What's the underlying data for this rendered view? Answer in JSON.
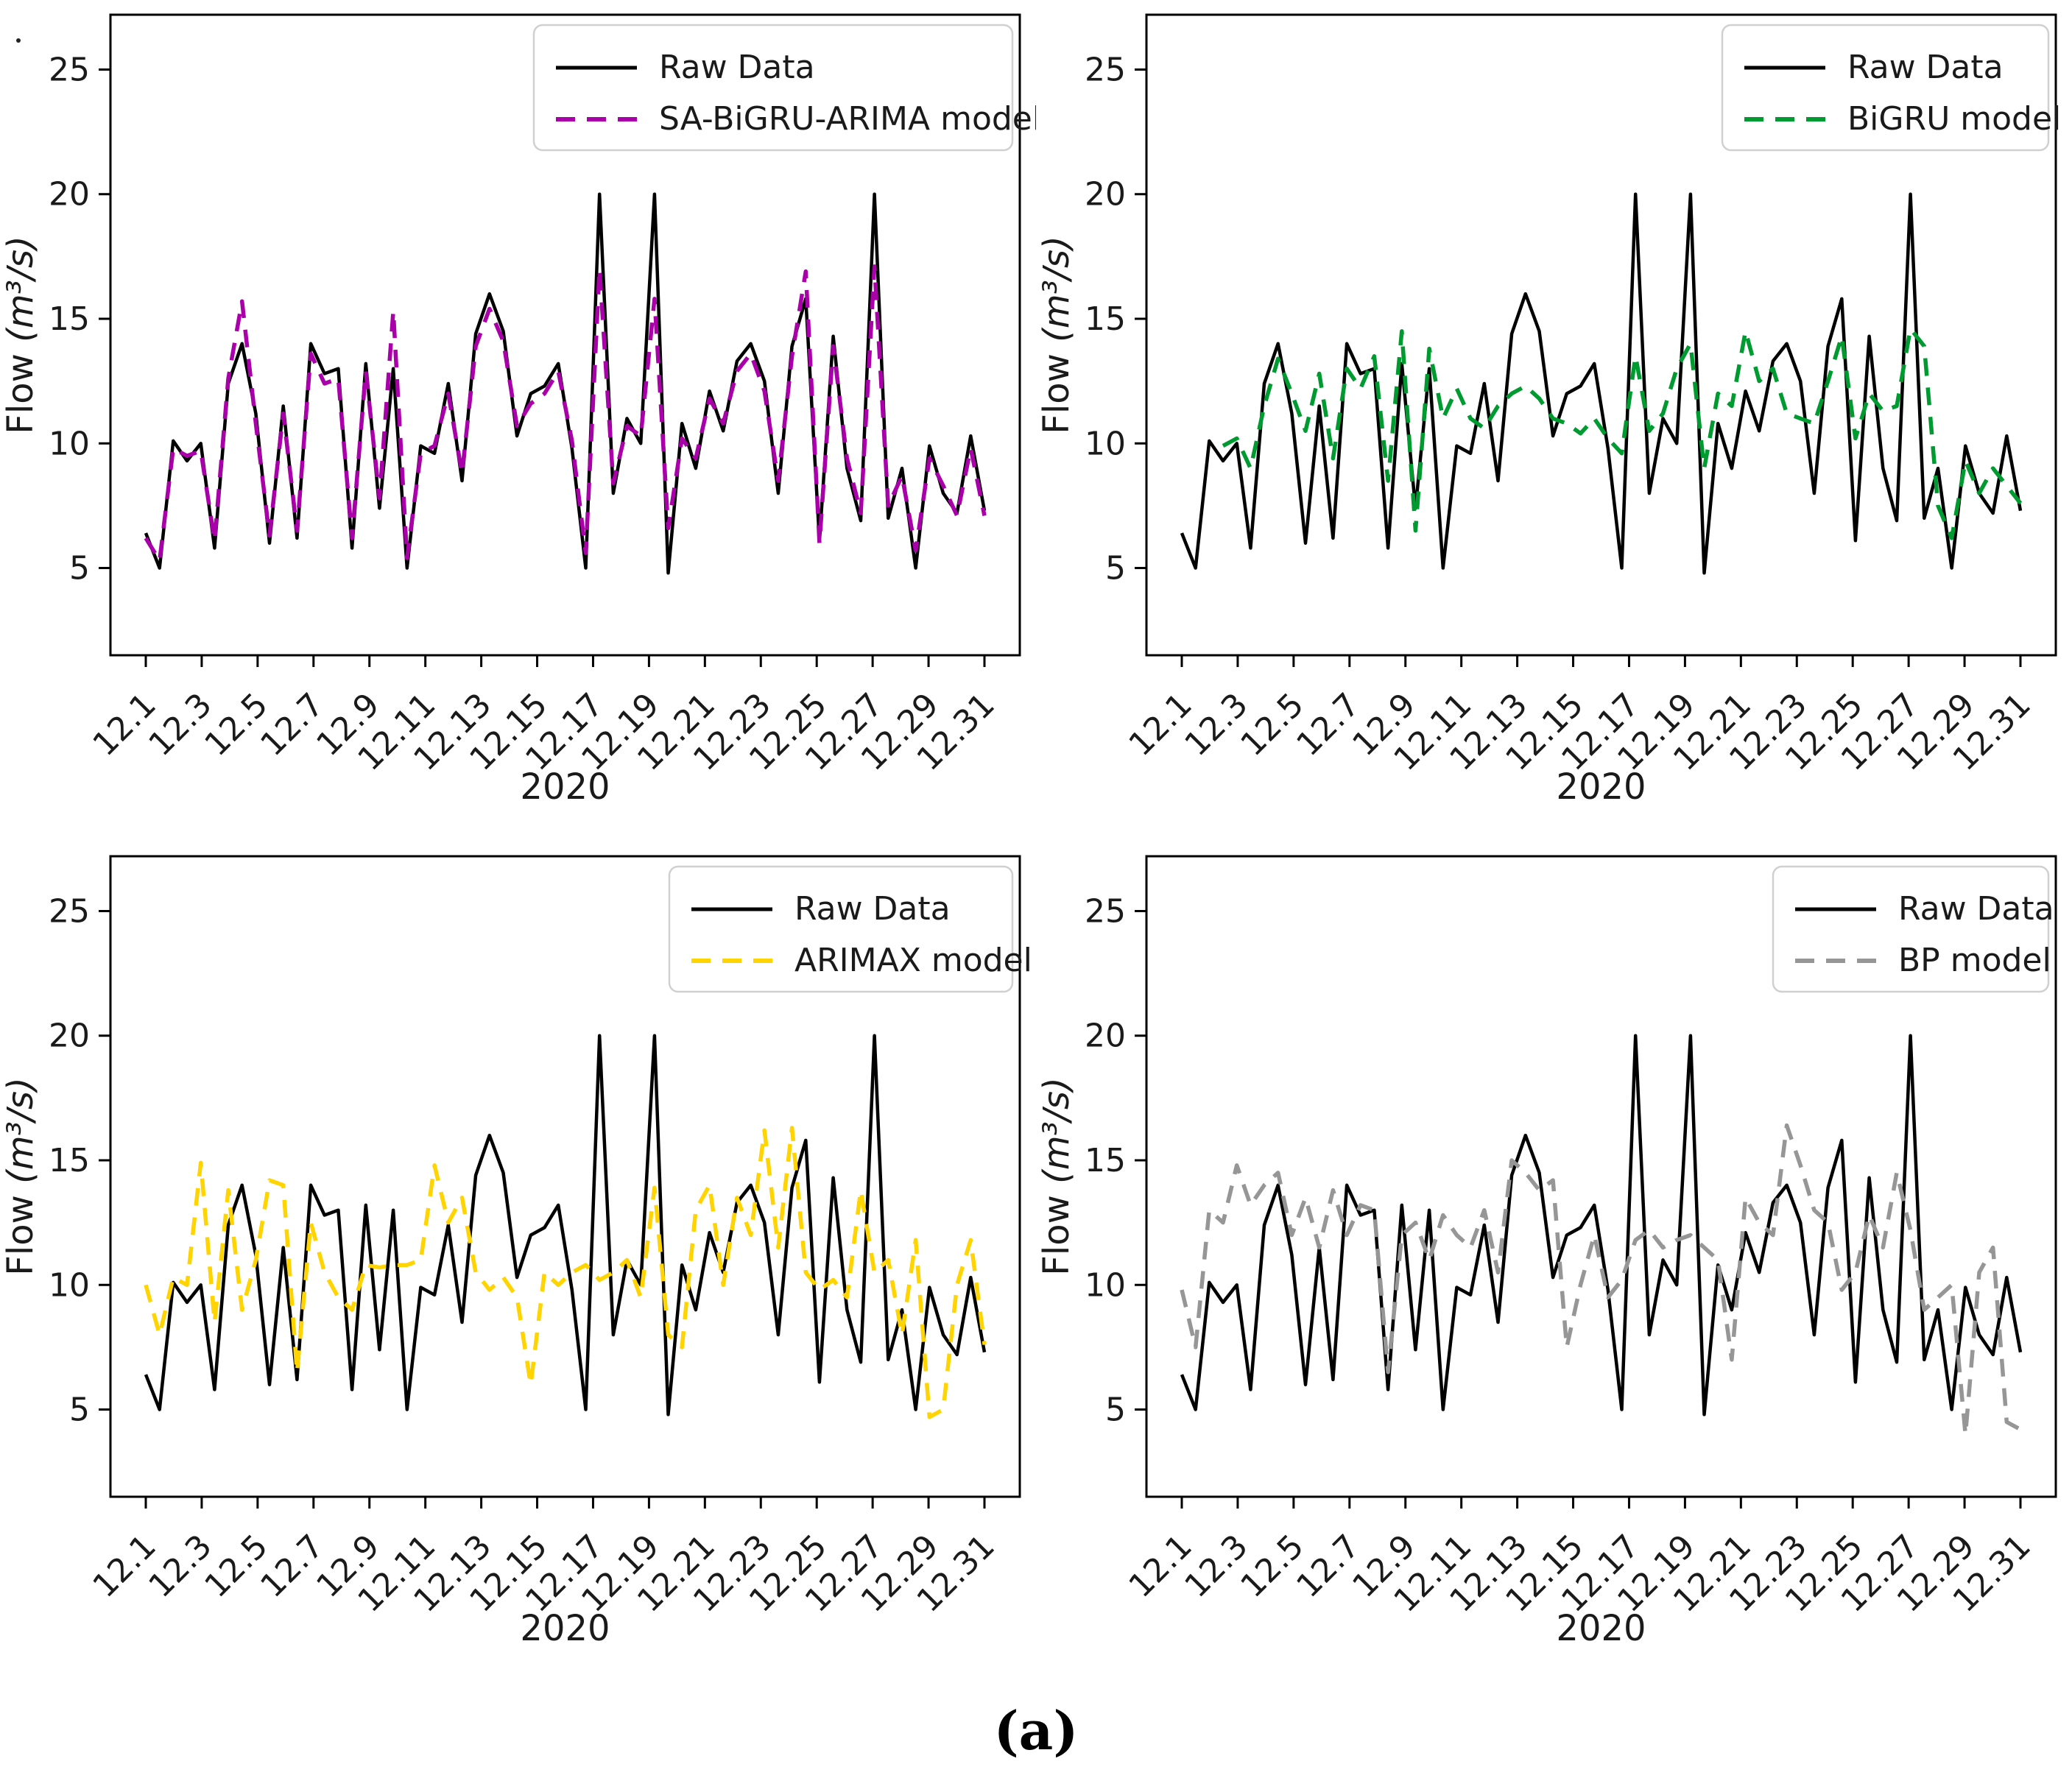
{
  "figure": {
    "caption": "(a)"
  },
  "chart_data": {
    "type": "line",
    "title": "",
    "xlabel": "2020",
    "ylabel": "Flow (m³/s)",
    "x_tick_labels": [
      "12.1",
      "12.3",
      "12.5",
      "12.7",
      "12.9",
      "12.11",
      "12.13",
      "12.15",
      "12.17",
      "12.19",
      "12.21",
      "12.23",
      "12.25",
      "12.27",
      "12.29",
      "12.31"
    ],
    "x_tick_days": [
      1,
      3,
      5,
      7,
      9,
      11,
      13,
      15,
      17,
      19,
      21,
      23,
      25,
      27,
      29,
      31
    ],
    "y_ticks": [
      5,
      10,
      15,
      20,
      25
    ],
    "ylim": [
      1.5,
      27.2
    ],
    "x_days_range": [
      1,
      31
    ],
    "samples_per_day": 2,
    "grid": false,
    "legend_position": "upper right",
    "axis_color": "#000000",
    "tick_label_color": "#1a1a1a",
    "raw_series": {
      "name": "Raw Data",
      "color": "#000000",
      "style": "solid",
      "values": [
        6.4,
        5.0,
        10.1,
        9.3,
        10.0,
        5.8,
        12.4,
        14.0,
        11.2,
        6.0,
        11.5,
        6.2,
        14.0,
        12.8,
        13.0,
        5.8,
        13.2,
        7.4,
        13.0,
        5.0,
        9.9,
        9.6,
        12.4,
        8.5,
        14.4,
        16.0,
        14.5,
        10.3,
        12.0,
        12.3,
        13.2,
        9.8,
        5.0,
        20.0,
        8.0,
        11.0,
        10.0,
        20.0,
        4.8,
        10.8,
        9.0,
        12.1,
        10.5,
        13.3,
        14.0,
        12.5,
        8.0,
        13.9,
        15.8,
        6.1,
        14.3,
        9.0,
        6.9,
        20.0,
        7.0,
        9.0,
        5.0,
        9.9,
        8.0,
        7.2,
        10.3,
        7.3
      ]
    },
    "panels": [
      {
        "position": "top-left",
        "model": {
          "name": "SA-BiGRU-ARIMA model",
          "color": "#AA00AA",
          "style": "dashed",
          "values": [
            6.2,
            5.3,
            9.8,
            9.5,
            9.7,
            6.1,
            12.6,
            15.7,
            10.8,
            6.3,
            11.2,
            6.5,
            13.6,
            12.4,
            12.6,
            6.2,
            12.9,
            7.8,
            15.3,
            5.4,
            9.6,
            9.9,
            12.0,
            8.8,
            13.9,
            15.4,
            14.1,
            10.7,
            11.6,
            12.0,
            12.9,
            10.1,
            5.6,
            17.0,
            8.4,
            10.7,
            10.3,
            15.8,
            6.6,
            10.2,
            9.4,
            11.8,
            10.8,
            12.9,
            13.6,
            12.1,
            8.5,
            13.5,
            16.9,
            6.0,
            13.9,
            9.4,
            7.2,
            17.1,
            7.5,
            8.7,
            5.7,
            9.4,
            8.3,
            7.1,
            9.8,
            7.1
          ]
        }
      },
      {
        "position": "top-right",
        "model": {
          "name": "BiGRU model",
          "color": "#009B30",
          "style": "dashed",
          "values": [
            null,
            null,
            null,
            9.9,
            10.2,
            9.0,
            11.5,
            13.4,
            12.0,
            10.5,
            12.8,
            9.4,
            13.0,
            12.2,
            13.5,
            8.5,
            14.5,
            6.5,
            13.8,
            11.0,
            12.2,
            11.0,
            10.6,
            11.5,
            12.0,
            12.3,
            11.8,
            11.0,
            10.8,
            10.4,
            11.0,
            10.2,
            9.6,
            13.5,
            10.5,
            11.2,
            13.0,
            14.0,
            9.0,
            12.0,
            11.5,
            14.5,
            12.5,
            13.0,
            11.2,
            11.0,
            10.8,
            12.5,
            14.3,
            10.2,
            12.0,
            11.3,
            11.5,
            14.6,
            13.9,
            7.5,
            6.2,
            9.3,
            8.0,
            9.0,
            8.3,
            7.6
          ]
        }
      },
      {
        "position": "bottom-left",
        "model": {
          "name": "ARIMAX model",
          "color": "#FFD400",
          "style": "dashed",
          "values": [
            10.0,
            8.0,
            10.3,
            10.0,
            14.9,
            8.5,
            13.8,
            9.0,
            11.0,
            14.2,
            14.0,
            6.5,
            12.5,
            10.5,
            9.5,
            9.0,
            10.8,
            10.7,
            10.8,
            10.8,
            11.0,
            14.8,
            12.5,
            13.5,
            10.5,
            9.8,
            10.3,
            9.5,
            6.0,
            10.5,
            10.0,
            10.5,
            10.8,
            10.2,
            10.5,
            11.0,
            9.5,
            13.9,
            8.0,
            7.5,
            13.0,
            14.0,
            10.0,
            13.5,
            12.0,
            16.2,
            11.5,
            16.3,
            10.5,
            9.8,
            10.2,
            9.5,
            13.8,
            10.5,
            11.0,
            8.0,
            11.8,
            4.7,
            5.0,
            10.0,
            11.8,
            7.6
          ]
        }
      },
      {
        "position": "bottom-right",
        "model": {
          "name": "BP model",
          "color": "#969696",
          "style": "dashed",
          "values": [
            9.8,
            7.5,
            13.0,
            12.5,
            14.8,
            13.2,
            14.0,
            14.5,
            12.0,
            13.5,
            11.5,
            13.8,
            12.0,
            13.2,
            13.0,
            6.5,
            12.0,
            12.5,
            11.0,
            12.8,
            12.0,
            11.5,
            13.0,
            10.5,
            15.0,
            14.5,
            13.8,
            14.2,
            7.5,
            10.0,
            12.0,
            9.5,
            10.2,
            11.8,
            12.2,
            11.5,
            11.8,
            12.0,
            11.5,
            11.0,
            7.0,
            13.5,
            12.5,
            12.0,
            16.4,
            14.8,
            13.0,
            12.5,
            9.8,
            10.5,
            12.8,
            11.5,
            14.5,
            12.2,
            9.0,
            9.5,
            10.0,
            4.0,
            10.5,
            11.5,
            4.5,
            4.2
          ]
        }
      }
    ]
  }
}
